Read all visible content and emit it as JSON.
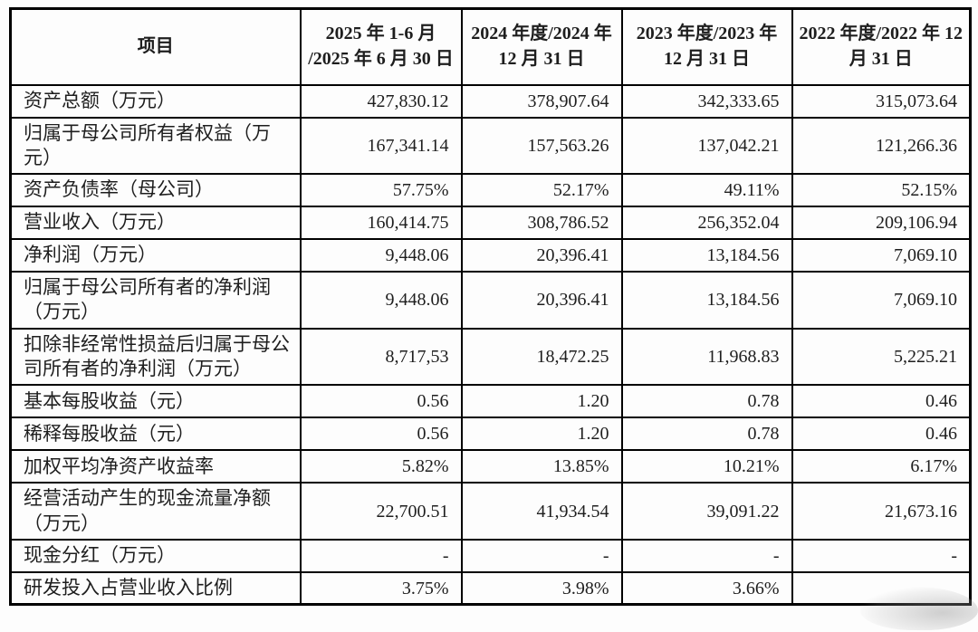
{
  "colors": {
    "border": "#000000",
    "text": "#1e1e1e",
    "background": "#fdfdfd"
  },
  "table": {
    "headers": [
      "项目",
      "2025 年 1-6 月 /2025 年 6 月 30 日",
      "2024 年度/2024 年 12 月 31 日",
      "2023 年度/2023 年 12 月 31 日",
      "2022 年度/2022 年 12 月 31 日"
    ],
    "rows": [
      {
        "label": "资产总额（万元）",
        "values": [
          "427,830.12",
          "378,907.64",
          "342,333.65",
          "315,073.64"
        ]
      },
      {
        "label": "归属于母公司所有者权益（万元）",
        "values": [
          "167,341.14",
          "157,563.26",
          "137,042.21",
          "121,266.36"
        ]
      },
      {
        "label": "资产负债率（母公司）",
        "values": [
          "57.75%",
          "52.17%",
          "49.11%",
          "52.15%"
        ]
      },
      {
        "label": "营业收入（万元）",
        "values": [
          "160,414.75",
          "308,786.52",
          "256,352.04",
          "209,106.94"
        ]
      },
      {
        "label": "净利润（万元）",
        "values": [
          "9,448.06",
          "20,396.41",
          "13,184.56",
          "7,069.10"
        ]
      },
      {
        "label": "归属于母公司所有者的净利润（万元）",
        "values": [
          "9,448.06",
          "20,396.41",
          "13,184.56",
          "7,069.10"
        ]
      },
      {
        "label": "扣除非经常性损益后归属于母公司所有者的净利润（万元）",
        "values": [
          "8,717,53",
          "18,472.25",
          "11,968.83",
          "5,225.21"
        ]
      },
      {
        "label": "基本每股收益（元）",
        "values": [
          "0.56",
          "1.20",
          "0.78",
          "0.46"
        ]
      },
      {
        "label": "稀释每股收益（元）",
        "values": [
          "0.56",
          "1.20",
          "0.78",
          "0.46"
        ]
      },
      {
        "label": "加权平均净资产收益率",
        "values": [
          "5.82%",
          "13.85%",
          "10.21%",
          "6.17%"
        ]
      },
      {
        "label": "经营活动产生的现金流量净额（万元）",
        "values": [
          "22,700.51",
          "41,934.54",
          "39,091.22",
          "21,673.16"
        ]
      },
      {
        "label": "现金分红（万元）",
        "values": [
          "-",
          "-",
          "-",
          "-"
        ]
      },
      {
        "label": "研发投入占营业收入比例",
        "values": [
          "3.75%",
          "3.98%",
          "3.66%",
          ""
        ]
      }
    ]
  }
}
